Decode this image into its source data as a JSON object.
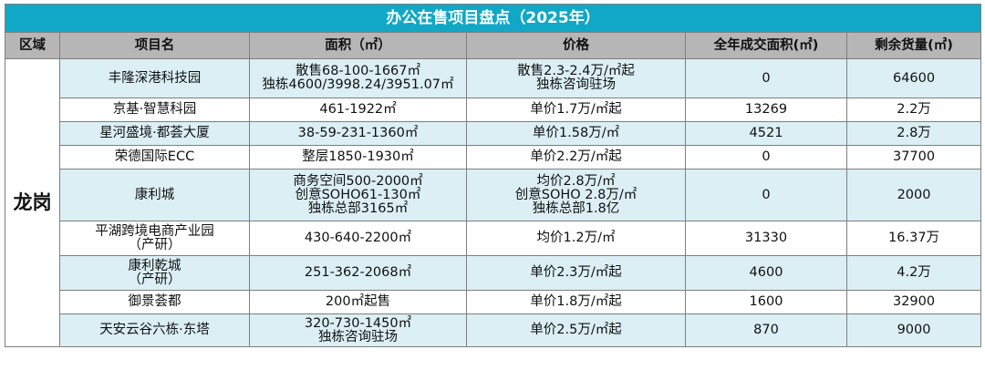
{
  "title": "办公在售项目盘点（2025年）",
  "headers": [
    "区域",
    "项目名",
    "面积（㎡）",
    "价格",
    "全年成交面积(㎡)",
    "剩余货量(㎡)"
  ],
  "region": "龙岗",
  "rows": [
    {
      "name": [
        "丰隆深港科技园"
      ],
      "area": [
        "散售68-100-1667㎡",
        "独栋4600/3998.24/3951.07㎡"
      ],
      "price": [
        "散售2.3-2.4万/㎡起",
        "独栋咨询驻场"
      ],
      "deal": "0",
      "stock": "64600"
    },
    {
      "name": [
        "京基·智慧科园"
      ],
      "area": [
        "461-1922㎡"
      ],
      "price": [
        "单价1.7万/㎡起"
      ],
      "deal": "13269",
      "stock": "2.2万"
    },
    {
      "name": [
        "星河盛境·都荟大厦"
      ],
      "area": [
        "38-59-231-1360㎡"
      ],
      "price": [
        "单价1.58万/㎡"
      ],
      "deal": "4521",
      "stock": "2.8万"
    },
    {
      "name": [
        "荣德国际ECC"
      ],
      "area": [
        "整层1850-1930㎡"
      ],
      "price": [
        "单价2.2万/㎡起"
      ],
      "deal": "0",
      "stock": "37700"
    },
    {
      "name": [
        "康利城"
      ],
      "area": [
        "商务空间500-2000㎡",
        "创意SOHO61-130㎡",
        "独栋总部3165㎡"
      ],
      "price": [
        "均价2.8万/㎡",
        "创意SOHO 2.8万/㎡",
        "独栋总部1.8亿"
      ],
      "deal": "0",
      "stock": "2000"
    },
    {
      "name": [
        "平湖跨境电商产业园",
        "（产研）"
      ],
      "area": [
        "430-640-2200㎡"
      ],
      "price": [
        "均价1.2万/㎡"
      ],
      "deal": "31330",
      "stock": "16.37万"
    },
    {
      "name": [
        "康利乾城",
        "（产研）"
      ],
      "area": [
        "251-362-2068㎡"
      ],
      "price": [
        "单价2.3万/㎡起"
      ],
      "deal": "4600",
      "stock": "4.2万"
    },
    {
      "name": [
        "御景荟都"
      ],
      "area": [
        "200㎡起售"
      ],
      "price": [
        "单价1.8万/㎡起"
      ],
      "deal": "1600",
      "stock": "32900"
    },
    {
      "name": [
        "天安云谷六栋·东塔"
      ],
      "area": [
        "320-730-1450㎡",
        "独栋咨询驻场"
      ],
      "price": [
        "单价2.5万/㎡起"
      ],
      "deal": "870",
      "stock": "9000"
    }
  ],
  "colors": {
    "title_bg": "#10a8c6",
    "header_bg": "#b6b6b6",
    "row_alt_bg": "#dbeff5"
  }
}
